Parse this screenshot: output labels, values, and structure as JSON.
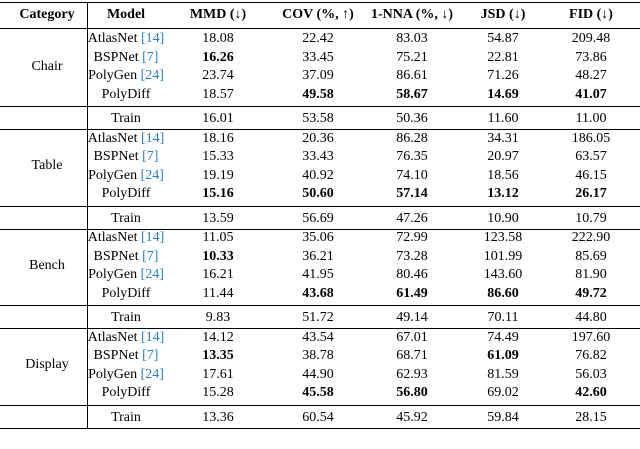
{
  "table": {
    "header": [
      "Category",
      "Model",
      "MMD (↓)",
      "COV (%, ↑)",
      "1-NNA (%, ↓)",
      "JSD (↓)",
      "FID (↓)"
    ],
    "groups": [
      {
        "category": "Chair",
        "rows": [
          {
            "model": "AtlasNet",
            "ref": "[14]",
            "values": [
              "18.08",
              "22.42",
              "83.03",
              "54.87",
              "209.48"
            ],
            "bold": []
          },
          {
            "model": "BSPNet",
            "ref": "[7]",
            "values": [
              "16.26",
              "33.45",
              "75.21",
              "22.81",
              "73.86"
            ],
            "bold": [
              0
            ]
          },
          {
            "model": "PolyGen",
            "ref": "[24]",
            "values": [
              "23.74",
              "37.09",
              "86.61",
              "71.26",
              "48.27"
            ],
            "bold": []
          },
          {
            "model": "PolyDiff",
            "values": [
              "18.57",
              "49.58",
              "58.67",
              "14.69",
              "41.07"
            ],
            "bold": [
              1,
              2,
              3,
              4
            ]
          }
        ],
        "train": {
          "model": "Train",
          "values": [
            "16.01",
            "53.58",
            "50.36",
            "11.60",
            "11.00"
          ]
        }
      },
      {
        "category": "Table",
        "rows": [
          {
            "model": "AtlasNet",
            "ref": "[14]",
            "values": [
              "18.16",
              "20.36",
              "86.28",
              "34.31",
              "186.05"
            ],
            "bold": []
          },
          {
            "model": "BSPNet",
            "ref": "[7]",
            "values": [
              "15.33",
              "33.43",
              "76.35",
              "20.97",
              "63.57"
            ],
            "bold": []
          },
          {
            "model": "PolyGen",
            "ref": "[24]",
            "values": [
              "19.19",
              "40.92",
              "74.10",
              "18.56",
              "46.15"
            ],
            "bold": []
          },
          {
            "model": "PolyDiff",
            "values": [
              "15.16",
              "50.60",
              "57.14",
              "13.12",
              "26.17"
            ],
            "bold": [
              0,
              1,
              2,
              3,
              4
            ]
          }
        ],
        "train": {
          "model": "Train",
          "values": [
            "13.59",
            "56.69",
            "47.26",
            "10.90",
            "10.79"
          ]
        }
      },
      {
        "category": "Bench",
        "rows": [
          {
            "model": "AtlasNet",
            "ref": "[14]",
            "values": [
              "11.05",
              "35.06",
              "72.99",
              "123.58",
              "222.90"
            ],
            "bold": []
          },
          {
            "model": "BSPNet",
            "ref": "[7]",
            "values": [
              "10.33",
              "36.21",
              "73.28",
              "101.99",
              "85.69"
            ],
            "bold": [
              0
            ]
          },
          {
            "model": "PolyGen",
            "ref": "[24]",
            "values": [
              "16.21",
              "41.95",
              "80.46",
              "143.60",
              "81.90"
            ],
            "bold": []
          },
          {
            "model": "PolyDiff",
            "values": [
              "11.44",
              "43.68",
              "61.49",
              "86.60",
              "49.72"
            ],
            "bold": [
              1,
              2,
              3,
              4
            ]
          }
        ],
        "train": {
          "model": "Train",
          "values": [
            "9.83",
            "51.72",
            "49.14",
            "70.11",
            "44.80"
          ]
        }
      },
      {
        "category": "Display",
        "rows": [
          {
            "model": "AtlasNet",
            "ref": "[14]",
            "values": [
              "14.12",
              "43.54",
              "67.01",
              "74.49",
              "197.60"
            ],
            "bold": []
          },
          {
            "model": "BSPNet",
            "ref": "[7]",
            "values": [
              "13.35",
              "38.78",
              "68.71",
              "61.09",
              "76.82"
            ],
            "bold": [
              0,
              3
            ]
          },
          {
            "model": "PolyGen",
            "ref": "[24]",
            "values": [
              "17.61",
              "44.90",
              "62.93",
              "81.59",
              "56.03"
            ],
            "bold": []
          },
          {
            "model": "PolyDiff",
            "values": [
              "15.28",
              "45.58",
              "56.80",
              "69.02",
              "42.60"
            ],
            "bold": [
              1,
              2,
              4
            ]
          }
        ],
        "train": {
          "model": "Train",
          "values": [
            "13.36",
            "60.54",
            "45.92",
            "59.84",
            "28.15"
          ]
        }
      }
    ]
  }
}
